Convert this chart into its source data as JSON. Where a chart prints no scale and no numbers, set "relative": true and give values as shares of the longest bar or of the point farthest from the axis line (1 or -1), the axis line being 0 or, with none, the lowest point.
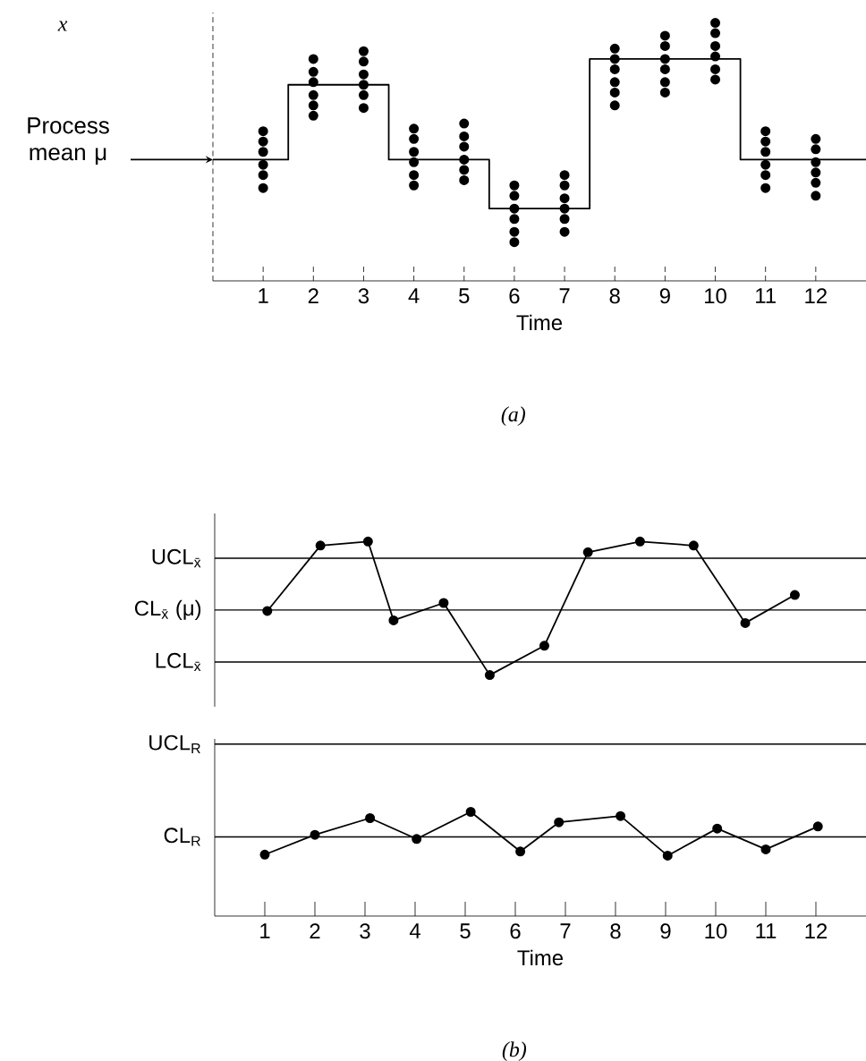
{
  "chart_data": [
    {
      "type": "step",
      "relative": true,
      "ylabel": "x",
      "xlabel": "Time",
      "xlim": [
        0,
        13
      ],
      "xticks": [
        1,
        2,
        3,
        4,
        5,
        6,
        7,
        8,
        9,
        10,
        11,
        12
      ],
      "tick_labels": "x",
      "annotations": [
        {
          "text": "Process mean μ",
          "x": 0,
          "y": 0.47
        },
        "(a)"
      ],
      "series": [
        {
          "type": "step",
          "color": "#000000",
          "marker": "none",
          "x": [
            0,
            1.5,
            3.5,
            5.5,
            7.5,
            10.5,
            13
          ],
          "values": [
            0.47,
            0.76,
            0.47,
            0.28,
            0.86,
            0.47,
            0.47
          ]
        },
        {
          "type": "scatter",
          "color": "#000000",
          "marker": "circle",
          "x": [
            1,
            1,
            1,
            1,
            1,
            1,
            2,
            2,
            2,
            2,
            2,
            2,
            3,
            3,
            3,
            3,
            3,
            3,
            4,
            4,
            4,
            4,
            4,
            4,
            5,
            5,
            5,
            5,
            5,
            5,
            6,
            6,
            6,
            6,
            6,
            6,
            7,
            7,
            7,
            7,
            7,
            7,
            8,
            8,
            8,
            8,
            8,
            8,
            9,
            9,
            9,
            9,
            9,
            9,
            10,
            10,
            10,
            10,
            10,
            10,
            11,
            11,
            11,
            11,
            11,
            11,
            12,
            12,
            12,
            12,
            12,
            12
          ],
          "values": [
            0.58,
            0.54,
            0.5,
            0.45,
            0.41,
            0.36,
            0.86,
            0.81,
            0.77,
            0.72,
            0.68,
            0.64,
            0.89,
            0.85,
            0.8,
            0.76,
            0.72,
            0.67,
            0.59,
            0.55,
            0.5,
            0.46,
            0.41,
            0.37,
            0.61,
            0.56,
            0.52,
            0.47,
            0.43,
            0.39,
            0.37,
            0.33,
            0.28,
            0.24,
            0.19,
            0.15,
            0.41,
            0.37,
            0.32,
            0.28,
            0.24,
            0.19,
            0.9,
            0.86,
            0.82,
            0.77,
            0.73,
            0.68,
            0.95,
            0.91,
            0.86,
            0.82,
            0.77,
            0.73,
            1.0,
            0.96,
            0.91,
            0.87,
            0.82,
            0.78,
            0.58,
            0.54,
            0.5,
            0.45,
            0.41,
            0.36,
            0.55,
            0.51,
            0.46,
            0.42,
            0.38,
            0.33
          ]
        }
      ]
    },
    {
      "type": "line",
      "relative": true,
      "xlim": [
        0,
        13
      ],
      "tick_labels": false,
      "marker": "circle",
      "ref_lines": [
        {
          "axis": "y",
          "value": 0.875,
          "label": "UCL$_{x̄}$"
        },
        {
          "axis": "y",
          "value": 0.487,
          "label": "CL$_{x̄}$ (μ)"
        },
        {
          "axis": "y",
          "value": 0.098,
          "label": "LCL$_{x̄}$"
        }
      ],
      "series": [
        {
          "color": "#000000",
          "x": [
            1.05,
            2.11,
            3.06,
            3.57,
            4.57,
            5.49,
            6.58,
            7.45,
            8.49,
            9.56,
            10.59,
            11.58
          ],
          "values": [
            0.48,
            0.97,
            1.0,
            0.41,
            0.54,
            0,
            0.22,
            0.92,
            1.0,
            0.97,
            0.39,
            0.6
          ]
        }
      ]
    },
    {
      "type": "line",
      "relative": true,
      "xlabel": "Time",
      "xlim": [
        0,
        13
      ],
      "xticks": [
        1,
        2,
        3,
        4,
        5,
        6,
        7,
        8,
        9,
        10,
        11,
        12
      ],
      "tick_labels": "x",
      "marker": "circle",
      "annotations": [
        "(b)"
      ],
      "ref_lines": [
        {
          "axis": "y",
          "value": 1.65,
          "label": "UCL$_{R}$"
        },
        {
          "axis": "y",
          "value": 0.76,
          "label": "CL$_{R}$"
        }
      ],
      "series": [
        {
          "color": "#000000",
          "x": [
            1.0,
            2.0,
            3.1,
            4.03,
            5.11,
            6.1,
            6.87,
            8.1,
            9.04,
            10.03,
            11.0,
            12.04
          ],
          "values": [
            0.59,
            0.78,
            0.94,
            0.74,
            1.0,
            0.62,
            0.9,
            0.96,
            0.58,
            0.84,
            0.64,
            0.86
          ]
        }
      ]
    }
  ]
}
